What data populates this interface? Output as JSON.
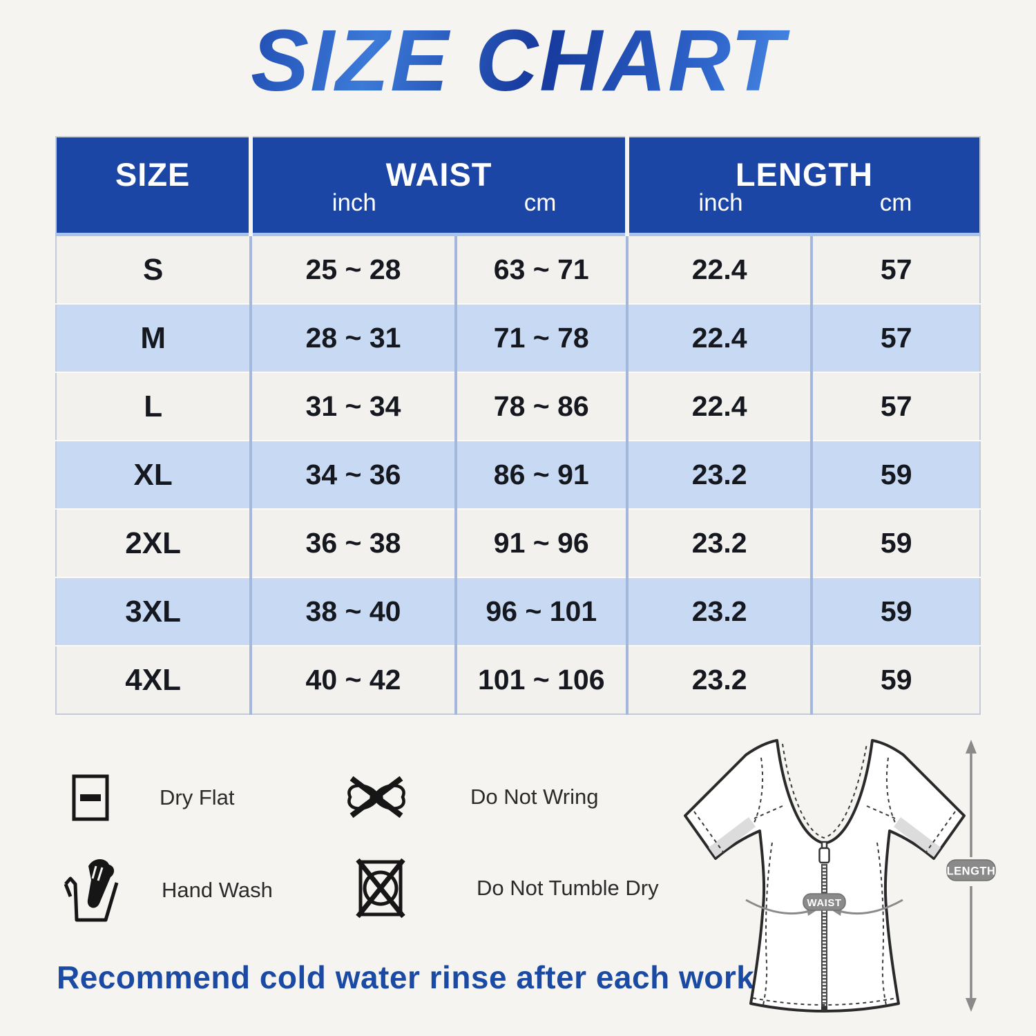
{
  "title": "SIZE CHART",
  "table": {
    "headers": {
      "size": "SIZE",
      "waist": "WAIST",
      "length": "LENGTH",
      "unit_inch": "inch",
      "unit_cm": "cm"
    },
    "rows": [
      {
        "size": "S",
        "waist_inch": "25 ~ 28",
        "waist_cm": "63 ~ 71",
        "length_inch": "22.4",
        "length_cm": "57"
      },
      {
        "size": "M",
        "waist_inch": "28 ~ 31",
        "waist_cm": "71 ~ 78",
        "length_inch": "22.4",
        "length_cm": "57"
      },
      {
        "size": "L",
        "waist_inch": "31 ~ 34",
        "waist_cm": "78 ~ 86",
        "length_inch": "22.4",
        "length_cm": "57"
      },
      {
        "size": "XL",
        "waist_inch": "34 ~ 36",
        "waist_cm": "86 ~ 91",
        "length_inch": "23.2",
        "length_cm": "59"
      },
      {
        "size": "2XL",
        "waist_inch": "36 ~ 38",
        "waist_cm": "91 ~ 96",
        "length_inch": "23.2",
        "length_cm": "59"
      },
      {
        "size": "3XL",
        "waist_inch": "38 ~ 40",
        "waist_cm": "96 ~ 101",
        "length_inch": "23.2",
        "length_cm": "59"
      },
      {
        "size": "4XL",
        "waist_inch": "40 ~ 42",
        "waist_cm": "101 ~ 106",
        "length_inch": "23.2",
        "length_cm": "59"
      }
    ]
  },
  "chart_data": {
    "type": "table",
    "title": "SIZE CHART",
    "columns": [
      "SIZE",
      "WAIST inch",
      "WAIST cm",
      "LENGTH inch",
      "LENGTH cm"
    ],
    "rows": [
      [
        "S",
        "25 ~ 28",
        "63 ~ 71",
        "22.4",
        "57"
      ],
      [
        "M",
        "28 ~ 31",
        "71 ~ 78",
        "22.4",
        "57"
      ],
      [
        "L",
        "31 ~ 34",
        "78 ~ 86",
        "22.4",
        "57"
      ],
      [
        "XL",
        "34 ~ 36",
        "86 ~ 91",
        "23.2",
        "59"
      ],
      [
        "2XL",
        "36 ~ 38",
        "91 ~ 96",
        "23.2",
        "59"
      ],
      [
        "3XL",
        "38 ~ 40",
        "96 ~ 101",
        "23.2",
        "59"
      ],
      [
        "4XL",
        "40 ~ 42",
        "101 ~ 106",
        "23.2",
        "59"
      ]
    ]
  },
  "care": [
    {
      "icon": "dry-flat-icon",
      "label": "Dry Flat"
    },
    {
      "icon": "do-not-wring-icon",
      "label": "Do Not Wring"
    },
    {
      "icon": "hand-wash-icon",
      "label": "Hand Wash"
    },
    {
      "icon": "do-not-tumble-dry-icon",
      "label": "Do Not Tumble Dry"
    }
  ],
  "note": "Recommend cold water rinse after each workout.",
  "diagram": {
    "waist_label": "WAIST",
    "length_label": "LENGTH"
  },
  "colors": {
    "page_background": "#f5f4f1",
    "header_blue": "#1c46a5",
    "row_light": "#f2f1ee",
    "row_blue": "#c8d9f4",
    "divider_blue": "#a3b8dc",
    "note_blue": "#1b4aa4",
    "title_blue_dark": "#16399c",
    "title_blue_light": "#4c8fe8",
    "diagram_gray": "#8a8a8a"
  }
}
